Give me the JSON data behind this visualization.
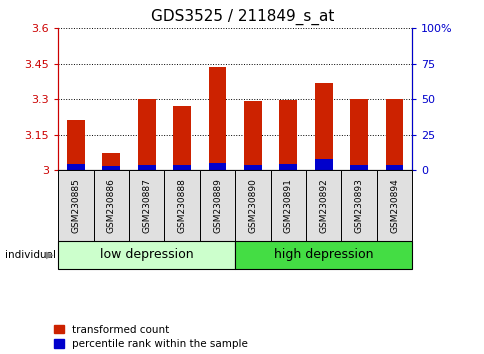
{
  "title": "GDS3525 / 211849_s_at",
  "samples": [
    "GSM230885",
    "GSM230886",
    "GSM230887",
    "GSM230888",
    "GSM230889",
    "GSM230890",
    "GSM230891",
    "GSM230892",
    "GSM230893",
    "GSM230894"
  ],
  "red_values": [
    3.21,
    3.07,
    3.3,
    3.27,
    3.435,
    3.29,
    3.295,
    3.37,
    3.3,
    3.3
  ],
  "blue_values": [
    0.025,
    0.018,
    0.022,
    0.02,
    0.03,
    0.022,
    0.025,
    0.045,
    0.02,
    0.02
  ],
  "base": 3.0,
  "ylim_left": [
    3.0,
    3.6
  ],
  "ylim_right": [
    0,
    100
  ],
  "yticks_left": [
    3.0,
    3.15,
    3.3,
    3.45,
    3.6
  ],
  "yticks_right": [
    0,
    25,
    50,
    75,
    100
  ],
  "ytick_labels_left": [
    "3",
    "3.15",
    "3.3",
    "3.45",
    "3.6"
  ],
  "ytick_labels_right": [
    "0",
    "25",
    "50",
    "75",
    "100%"
  ],
  "left_color": "#cc0000",
  "right_color": "#0000cc",
  "bar_color_red": "#cc2200",
  "bar_color_blue": "#0000cc",
  "group_labels": [
    "low depression",
    "high depression"
  ],
  "low_group_color": "#ccffcc",
  "high_group_color": "#44dd44",
  "individual_label": "individual",
  "legend_red": "transformed count",
  "legend_blue": "percentile rank within the sample",
  "bar_width": 0.5,
  "tick_label_fontsize": 8,
  "title_fontsize": 11,
  "group_label_fontsize": 9,
  "sample_label_fontsize": 6.5
}
